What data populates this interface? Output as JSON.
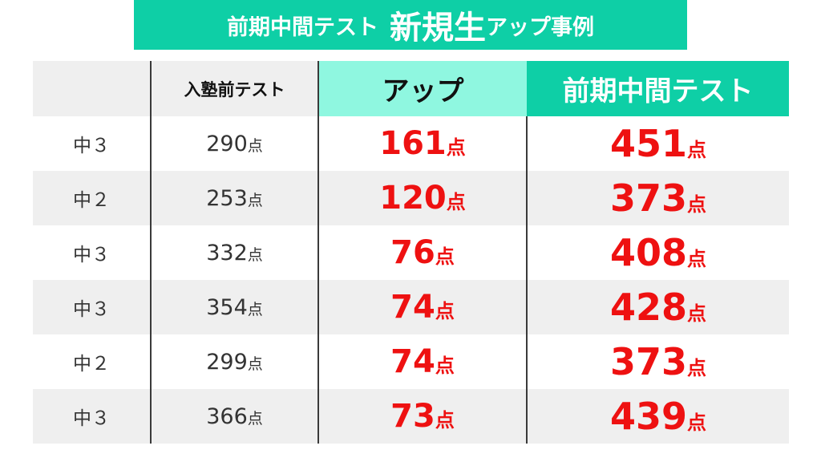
{
  "banner": {
    "part1": "前期中間テスト",
    "part2": "新規生",
    "part3": "アップ事例"
  },
  "table": {
    "headers": {
      "grade": "",
      "pre": "入塾前テスト",
      "up": "アップ",
      "mid": "前期中間テスト"
    },
    "unit": "点",
    "rows": [
      {
        "grade": "中３",
        "pre": "290",
        "up": "161",
        "mid": "451"
      },
      {
        "grade": "中２",
        "pre": "253",
        "up": "120",
        "mid": "373"
      },
      {
        "grade": "中３",
        "pre": "332",
        "up": "76",
        "mid": "408"
      },
      {
        "grade": "中３",
        "pre": "354",
        "up": "74",
        "mid": "428"
      },
      {
        "grade": "中２",
        "pre": "299",
        "up": "74",
        "mid": "373"
      },
      {
        "grade": "中３",
        "pre": "366",
        "up": "73",
        "mid": "439"
      }
    ]
  },
  "colors": {
    "banner": "#0ecfa6",
    "up_header": "#8ff7e0",
    "accent_red": "#ee1111",
    "stripe": "#efefef"
  }
}
